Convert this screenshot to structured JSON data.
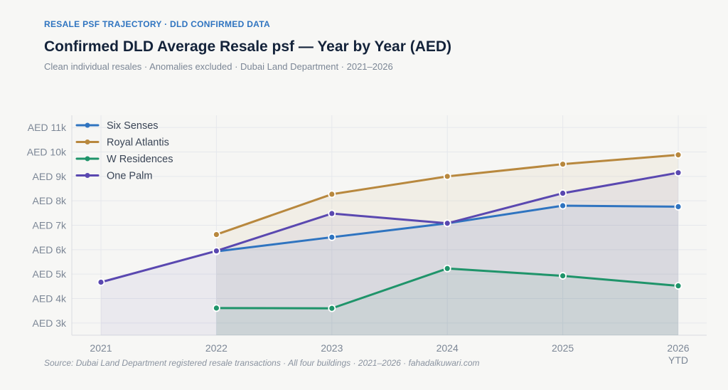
{
  "header": {
    "eyebrow": "RESALE PSF TRAJECTORY · DLD CONFIRMED DATA",
    "title": "Confirmed DLD Average Resale psf — Year by Year (AED)",
    "subtitle": "Clean individual resales · Anomalies excluded · Dubai Land Department · 2021–2026"
  },
  "footer": {
    "source": "Source: Dubai Land Department registered resale transactions · All four buildings · 2021–2026 · fahadalkuwari.com"
  },
  "chart_data": {
    "type": "line",
    "categories": [
      "2021",
      "2022",
      "2023",
      "2024",
      "2025",
      "2026 YTD"
    ],
    "category_lines": [
      [
        "2021"
      ],
      [
        "2022"
      ],
      [
        "2023"
      ],
      [
        "2024"
      ],
      [
        "2025"
      ],
      [
        "2026",
        "YTD"
      ]
    ],
    "y_ticks": [
      3000,
      4000,
      5000,
      6000,
      7000,
      8000,
      9000,
      10000,
      11000
    ],
    "y_tick_labels": [
      "AED 3k",
      "AED 4k",
      "AED 5k",
      "AED 6k",
      "AED 7k",
      "AED 8k",
      "AED 9k",
      "AED 10k",
      "AED 11k"
    ],
    "ylim": [
      2500,
      11500
    ],
    "grid": true,
    "legend_position": "top-left",
    "series": [
      {
        "name": "Six Senses",
        "color": "#2f74c0",
        "values": [
          null,
          5930,
          6510,
          7080,
          7800,
          7760
        ]
      },
      {
        "name": "Royal Atlantis",
        "color": "#b8883e",
        "values": [
          null,
          6620,
          8270,
          9000,
          9500,
          9880
        ]
      },
      {
        "name": "W Residences",
        "color": "#1f946a",
        "values": [
          null,
          3610,
          3600,
          5230,
          4930,
          4520
        ]
      },
      {
        "name": "One Palm",
        "color": "#5a48b0",
        "values": [
          4670,
          5950,
          7480,
          7080,
          8310,
          9150
        ]
      }
    ]
  }
}
